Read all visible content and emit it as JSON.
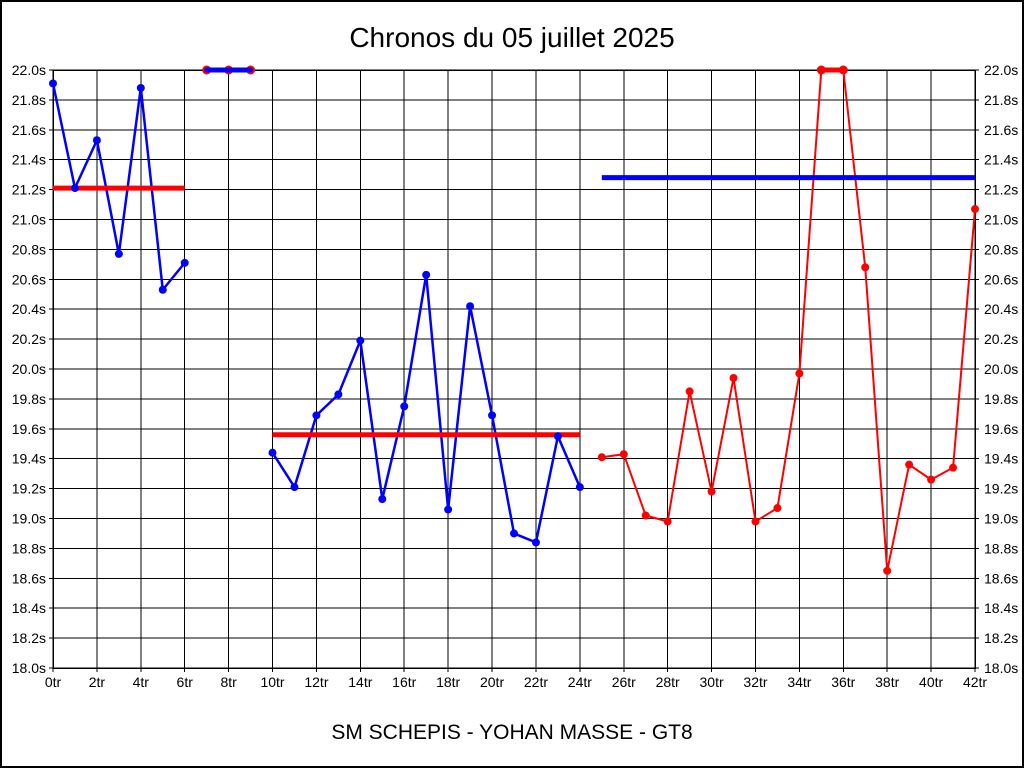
{
  "chart_data": {
    "type": "line",
    "title": "Chronos du 05 juillet 2025",
    "footer": "SM SCHEPIS - YOHAN MASSE - GT8",
    "x_unit": "tr",
    "y_unit": "s",
    "xlim": [
      0,
      42
    ],
    "ylim": [
      18.0,
      22.0
    ],
    "grid": true,
    "legend": "none",
    "colors": {
      "blue": "#0000ff",
      "red": "#ff0000",
      "grid": "#000000"
    },
    "x_ticks": [
      {
        "v": 0,
        "label": "0tr"
      },
      {
        "v": 2,
        "label": "2tr"
      },
      {
        "v": 4,
        "label": "4tr"
      },
      {
        "v": 6,
        "label": "6tr"
      },
      {
        "v": 8,
        "label": "8tr"
      },
      {
        "v": 10,
        "label": "10tr"
      },
      {
        "v": 12,
        "label": "12tr"
      },
      {
        "v": 14,
        "label": "14tr"
      },
      {
        "v": 16,
        "label": "16tr"
      },
      {
        "v": 18,
        "label": "18tr"
      },
      {
        "v": 20,
        "label": "20tr"
      },
      {
        "v": 22,
        "label": "22tr"
      },
      {
        "v": 24,
        "label": "24tr"
      },
      {
        "v": 26,
        "label": "26tr"
      },
      {
        "v": 28,
        "label": "28tr"
      },
      {
        "v": 30,
        "label": "30tr"
      },
      {
        "v": 32,
        "label": "32tr"
      },
      {
        "v": 34,
        "label": "34tr"
      },
      {
        "v": 36,
        "label": "36tr"
      },
      {
        "v": 38,
        "label": "38tr"
      },
      {
        "v": 40,
        "label": "40tr"
      },
      {
        "v": 42,
        "label": "42tr"
      }
    ],
    "y_ticks": [
      {
        "v": 22.0,
        "label": "22.0s"
      },
      {
        "v": 21.8,
        "label": "21.8s"
      },
      {
        "v": 21.6,
        "label": "21.6s"
      },
      {
        "v": 21.4,
        "label": "21.4s"
      },
      {
        "v": 21.2,
        "label": "21.2s"
      },
      {
        "v": 21.0,
        "label": "21.0s"
      },
      {
        "v": 20.8,
        "label": "20.8s"
      },
      {
        "v": 20.6,
        "label": "20.6s"
      },
      {
        "v": 20.4,
        "label": "20.4s"
      },
      {
        "v": 20.2,
        "label": "20.2s"
      },
      {
        "v": 20.0,
        "label": "20.0s"
      },
      {
        "v": 19.8,
        "label": "19.8s"
      },
      {
        "v": 19.6,
        "label": "19.6s"
      },
      {
        "v": 19.4,
        "label": "19.4s"
      },
      {
        "v": 19.2,
        "label": "19.2s"
      },
      {
        "v": 19.0,
        "label": "19.0s"
      },
      {
        "v": 18.8,
        "label": "18.8s"
      },
      {
        "v": 18.6,
        "label": "18.6s"
      },
      {
        "v": 18.4,
        "label": "18.4s"
      },
      {
        "v": 18.2,
        "label": "18.2s"
      },
      {
        "v": 18.0,
        "label": "18.0s"
      }
    ],
    "series": [
      {
        "name": "stint-1-blue",
        "line_color": "#0000ff",
        "marker_color": "#0000ff",
        "x": [
          0,
          1,
          2,
          3,
          4,
          5,
          6
        ],
        "y": [
          21.91,
          21.21,
          21.53,
          20.77,
          21.88,
          20.53,
          20.71
        ]
      },
      {
        "name": "capped-laps-blue-7-9",
        "line_color": "#0000ff",
        "marker_color": "#ff0000",
        "line_width": 5,
        "line_over_marker": true,
        "x": [
          7,
          8,
          9
        ],
        "y": [
          22.0,
          22.0,
          22.0
        ]
      },
      {
        "name": "stint-2-blue",
        "line_color": "#0000ff",
        "marker_color": "#0000ff",
        "x": [
          10,
          11,
          12,
          13,
          14,
          15,
          16,
          17,
          18,
          19,
          20,
          21,
          22,
          23,
          24
        ],
        "y": [
          19.44,
          19.21,
          19.69,
          19.83,
          20.19,
          19.13,
          19.75,
          20.63,
          19.06,
          20.42,
          19.69,
          18.9,
          18.84,
          19.55,
          19.21
        ]
      },
      {
        "name": "stint-3-red",
        "line_color": "#ff0000",
        "marker_color": "#ff0000",
        "line_width": 2,
        "x": [
          25,
          26,
          27,
          28,
          29,
          30,
          31,
          32,
          33,
          34,
          35,
          36,
          37,
          38,
          39,
          40,
          41,
          42
        ],
        "y": [
          19.41,
          19.43,
          19.02,
          18.98,
          19.85,
          19.18,
          19.94,
          18.98,
          19.07,
          19.97,
          22.0,
          22.0,
          20.68,
          18.65,
          19.36,
          19.26,
          19.34,
          21.07
        ]
      },
      {
        "name": "capped-laps-red-35-36",
        "line_color": "#ff0000",
        "marker_color": "#ff0000",
        "line_width": 5,
        "line_over_marker": true,
        "x": [
          35,
          36
        ],
        "y": [
          22.0,
          22.0
        ]
      }
    ],
    "reference_lines": [
      {
        "name": "avg-stint-1",
        "color": "#ff0000",
        "y": 21.21,
        "x_start": 0,
        "x_end": 6
      },
      {
        "name": "avg-stint-2",
        "color": "#ff0000",
        "y": 19.56,
        "x_start": 10,
        "x_end": 24
      },
      {
        "name": "avg-stint-3",
        "color": "#0000ff",
        "y": 21.28,
        "x_start": 25,
        "x_end": 42
      }
    ]
  }
}
